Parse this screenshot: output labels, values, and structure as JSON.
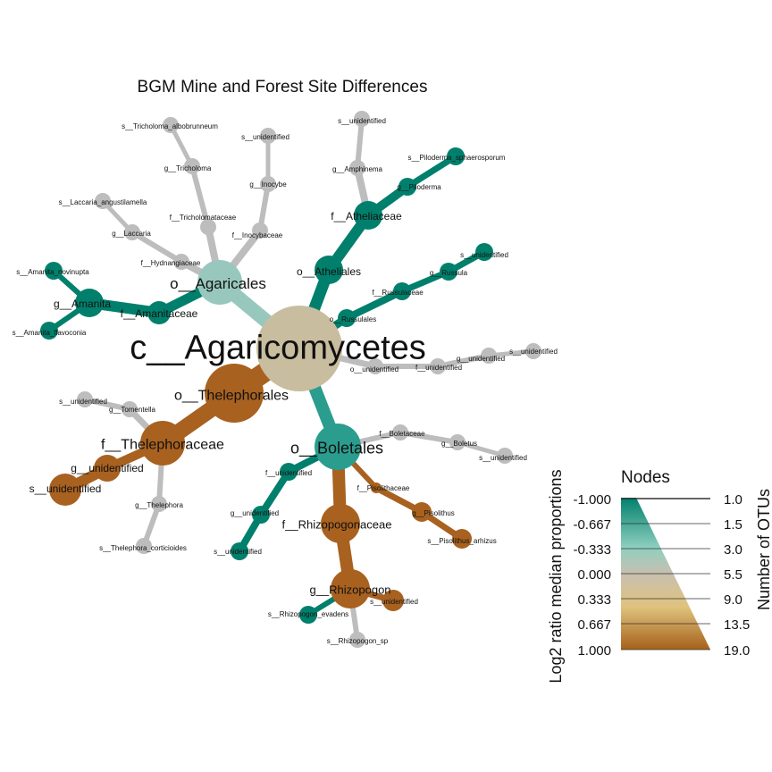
{
  "title": "BGM Mine and Forest Site Differences",
  "colors": {
    "green_dark": "#00806c",
    "green_mid": "#2a9d8f",
    "teal_light": "#98c8bd",
    "beige": "#c9bd9f",
    "gray": "#bdbdbd",
    "brown": "#a8611f",
    "brown_dark": "#b16a26"
  },
  "legend": {
    "title": "Nodes",
    "color_axis_label": "Log2 ratio median proportions",
    "size_axis_label": "Number of OTUs",
    "color_ticks": [
      "-1.000",
      "-0.667",
      "-0.333",
      "0.000",
      "0.333",
      "0.667",
      "1.000"
    ],
    "size_ticks": [
      "1.0",
      "1.5",
      "3.0",
      "5.5",
      "9.0",
      "13.5",
      "19.0"
    ]
  },
  "nodes": [
    {
      "id": "root",
      "label": "c__Agaricomycetes",
      "color": "beige"
    },
    {
      "id": "agaricales",
      "label": "o__Agaricales",
      "color": "teal_light"
    },
    {
      "id": "tricholomataceae",
      "label": "f__Tricholomataceae",
      "color": "gray"
    },
    {
      "id": "tricholoma",
      "label": "g__Tricholoma",
      "color": "gray"
    },
    {
      "id": "tric_albo",
      "label": "s__Tricholoma_albobrunneum",
      "color": "gray"
    },
    {
      "id": "inocybaceae",
      "label": "f__Inocybaceae",
      "color": "gray"
    },
    {
      "id": "inocybe",
      "label": "g__Inocybe",
      "color": "gray"
    },
    {
      "id": "inocybe_s",
      "label": "s__unidentified",
      "color": "gray"
    },
    {
      "id": "hydnangiaceae",
      "label": "f__Hydnangiaceae",
      "color": "gray"
    },
    {
      "id": "laccaria",
      "label": "g__Laccaria",
      "color": "gray"
    },
    {
      "id": "lacc_ang",
      "label": "s__Laccaria_angustilamella",
      "color": "gray"
    },
    {
      "id": "amanitaceae",
      "label": "f__Amanitaceae",
      "color": "green_dark"
    },
    {
      "id": "amanita",
      "label": "g__Amanita",
      "color": "green_dark"
    },
    {
      "id": "aman_nov",
      "label": "s__Amanita_novinupta",
      "color": "green_dark"
    },
    {
      "id": "aman_flav",
      "label": "s__Amanita_flavoconia",
      "color": "green_dark"
    },
    {
      "id": "atheliales",
      "label": "o__Atheliales",
      "color": "green_dark"
    },
    {
      "id": "atheliaceae",
      "label": "f__Atheliaceae",
      "color": "green_dark"
    },
    {
      "id": "amphinema",
      "label": "g__Amphinema",
      "color": "gray"
    },
    {
      "id": "amph_s",
      "label": "s__unidentified",
      "color": "gray"
    },
    {
      "id": "piloderma",
      "label": "g__Piloderma",
      "color": "green_dark"
    },
    {
      "id": "pilo_s",
      "label": "s__Piloderma_sphaerosporum",
      "color": "green_dark"
    },
    {
      "id": "russulales",
      "label": "o__Russulales",
      "color": "green_dark"
    },
    {
      "id": "russulaceae",
      "label": "f__Russulaceae",
      "color": "green_dark"
    },
    {
      "id": "russula",
      "label": "g__Russula",
      "color": "green_dark"
    },
    {
      "id": "russ_s",
      "label": "s__unidentified",
      "color": "green_dark"
    },
    {
      "id": "o_unid",
      "label": "o__unidentified",
      "color": "gray"
    },
    {
      "id": "f_unid",
      "label": "f__unidentified",
      "color": "gray"
    },
    {
      "id": "g_unid",
      "label": "g__unidentified",
      "color": "gray"
    },
    {
      "id": "s_unid",
      "label": "s__unidentified",
      "color": "gray"
    },
    {
      "id": "boletales",
      "label": "o__Boletales",
      "color": "green_mid"
    },
    {
      "id": "boletaceae",
      "label": "f__Boletaceae",
      "color": "gray"
    },
    {
      "id": "boletus",
      "label": "g__Boletus",
      "color": "gray"
    },
    {
      "id": "bol_s",
      "label": "s__unidentified",
      "color": "gray"
    },
    {
      "id": "pisolithaceae",
      "label": "f__Pisolithaceae",
      "color": "brown"
    },
    {
      "id": "pisolithus",
      "label": "g__Pisolithus",
      "color": "brown"
    },
    {
      "id": "piso_s",
      "label": "s__Pisolithus_arhizus",
      "color": "brown"
    },
    {
      "id": "bol_funid",
      "label": "f__unidentified",
      "color": "green_dark"
    },
    {
      "id": "bol_gunid",
      "label": "g__unidentified",
      "color": "green_dark"
    },
    {
      "id": "bol_sunid",
      "label": "s__unidentified",
      "color": "green_dark"
    },
    {
      "id": "rhizopogonaceae",
      "label": "f__Rhizopogonaceae",
      "color": "brown"
    },
    {
      "id": "rhizopogon",
      "label": "g__Rhizopogon",
      "color": "brown"
    },
    {
      "id": "rhiz_unid",
      "label": "s__unidentified",
      "color": "brown"
    },
    {
      "id": "rhiz_evad",
      "label": "s__Rhizopogon_evadens",
      "color": "green_dark"
    },
    {
      "id": "rhiz_sp",
      "label": "s__Rhizopogon_sp",
      "color": "gray"
    },
    {
      "id": "thelephorales",
      "label": "o__Thelephorales",
      "color": "brown"
    },
    {
      "id": "thelephoraceae",
      "label": "f__Thelephoraceae",
      "color": "brown"
    },
    {
      "id": "tomentella",
      "label": "g__Tomentella",
      "color": "gray"
    },
    {
      "id": "tom_s",
      "label": "s__unidentified",
      "color": "gray"
    },
    {
      "id": "thel_gunid",
      "label": "g__unidentified",
      "color": "brown"
    },
    {
      "id": "thel_sunid",
      "label": "s__unidentified",
      "color": "brown"
    },
    {
      "id": "thelephora",
      "label": "g__Thelephora",
      "color": "gray"
    },
    {
      "id": "thel_cort",
      "label": "s__Thelephora_corticioides",
      "color": "gray"
    }
  ],
  "edges": [
    [
      "root",
      "agaricales"
    ],
    [
      "agaricales",
      "tricholomataceae"
    ],
    [
      "tricholomataceae",
      "tricholoma"
    ],
    [
      "tricholoma",
      "tric_albo"
    ],
    [
      "agaricales",
      "inocybaceae"
    ],
    [
      "inocybaceae",
      "inocybe"
    ],
    [
      "inocybe",
      "inocybe_s"
    ],
    [
      "agaricales",
      "hydnangiaceae"
    ],
    [
      "hydnangiaceae",
      "laccaria"
    ],
    [
      "laccaria",
      "lacc_ang"
    ],
    [
      "agaricales",
      "amanitaceae"
    ],
    [
      "amanitaceae",
      "amanita"
    ],
    [
      "amanita",
      "aman_nov"
    ],
    [
      "amanita",
      "aman_flav"
    ],
    [
      "root",
      "atheliales"
    ],
    [
      "atheliales",
      "atheliaceae"
    ],
    [
      "atheliaceae",
      "amphinema"
    ],
    [
      "amphinema",
      "amph_s"
    ],
    [
      "atheliaceae",
      "piloderma"
    ],
    [
      "piloderma",
      "pilo_s"
    ],
    [
      "root",
      "russulales"
    ],
    [
      "russulales",
      "russulaceae"
    ],
    [
      "russulaceae",
      "russula"
    ],
    [
      "russula",
      "russ_s"
    ],
    [
      "root",
      "o_unid"
    ],
    [
      "o_unid",
      "f_unid"
    ],
    [
      "f_unid",
      "g_unid"
    ],
    [
      "g_unid",
      "s_unid"
    ],
    [
      "root",
      "boletales"
    ],
    [
      "boletales",
      "boletaceae"
    ],
    [
      "boletaceae",
      "boletus"
    ],
    [
      "boletus",
      "bol_s"
    ],
    [
      "boletales",
      "pisolithaceae"
    ],
    [
      "pisolithaceae",
      "pisolithus"
    ],
    [
      "pisolithus",
      "piso_s"
    ],
    [
      "boletales",
      "bol_funid"
    ],
    [
      "bol_funid",
      "bol_gunid"
    ],
    [
      "bol_gunid",
      "bol_sunid"
    ],
    [
      "boletales",
      "rhizopogonaceae"
    ],
    [
      "rhizopogonaceae",
      "rhizopogon"
    ],
    [
      "rhizopogon",
      "rhiz_unid"
    ],
    [
      "rhizopogon",
      "rhiz_evad"
    ],
    [
      "rhizopogon",
      "rhiz_sp"
    ],
    [
      "root",
      "thelephorales"
    ],
    [
      "thelephorales",
      "thelephoraceae"
    ],
    [
      "thelephoraceae",
      "tomentella"
    ],
    [
      "tomentella",
      "tom_s"
    ],
    [
      "thelephoraceae",
      "thel_gunid"
    ],
    [
      "thel_gunid",
      "thel_sunid"
    ],
    [
      "thelephoraceae",
      "thelephora"
    ],
    [
      "thelephora",
      "thel_cort"
    ]
  ]
}
